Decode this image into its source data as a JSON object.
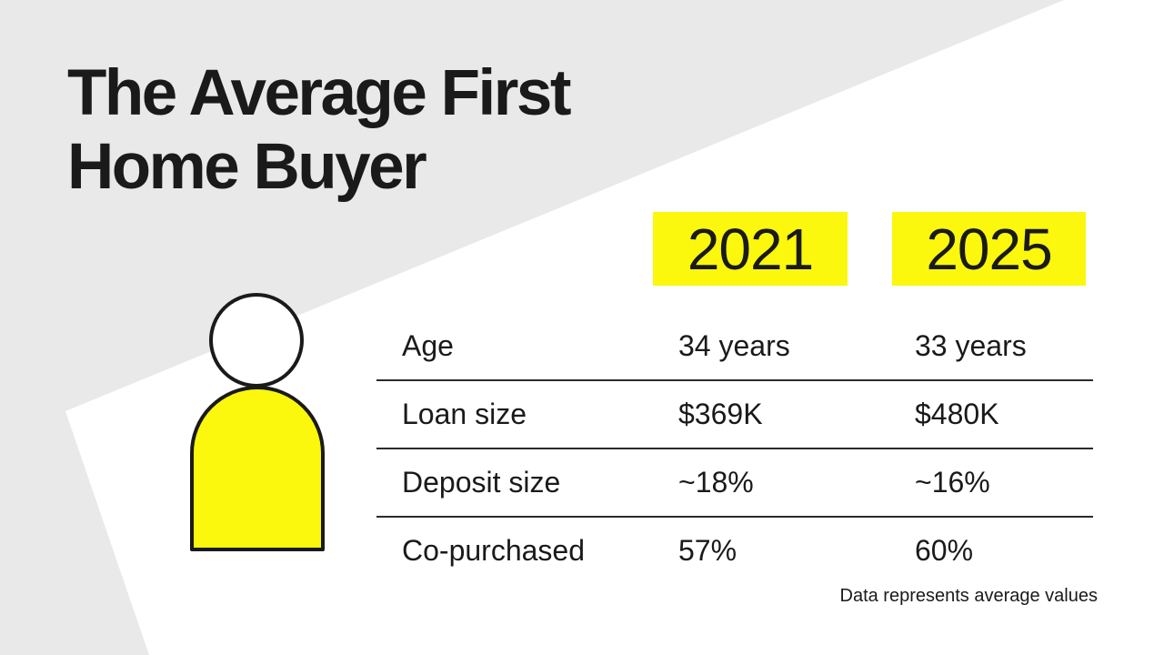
{
  "title_lines": [
    "The Average First",
    "Home Buyer"
  ],
  "years": [
    "2021",
    "2025"
  ],
  "rows": [
    {
      "label": "Age",
      "v2021": "34 years",
      "v2025": "33 years"
    },
    {
      "label": "Loan size",
      "v2021": "$369K",
      "v2025": "$480K"
    },
    {
      "label": "Deposit size",
      "v2021": "~18%",
      "v2025": "~16%"
    },
    {
      "label": "Co-purchased",
      "v2021": "57%",
      "v2025": "60%"
    }
  ],
  "footnote": "Data represents average values",
  "colors": {
    "accent": "#fbf70d",
    "background": "#e9e9e9",
    "panel": "#ffffff",
    "text": "#1a1a1a"
  },
  "icons": {
    "person": "person-icon"
  }
}
